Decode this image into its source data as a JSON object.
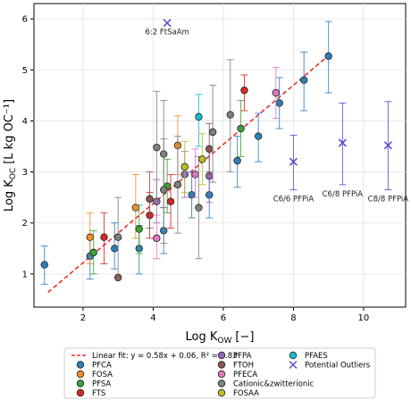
{
  "chart_data": {
    "type": "scatter",
    "xlabel": "Log K",
    "xlabel_sub": "OW",
    "xlabel_unit": "[−]",
    "ylabel": "Log K",
    "ylabel_sub": "OC",
    "ylabel_unit": "[L kg OC⁻¹]",
    "xlim": [
      0.6,
      11.2
    ],
    "ylim": [
      0.35,
      6.3
    ],
    "xticks": [
      2,
      4,
      6,
      8,
      10
    ],
    "yticks": [
      1,
      2,
      3,
      4,
      5,
      6
    ],
    "grid": true,
    "fit": {
      "slope": 0.58,
      "intercept": 0.06,
      "x_range": [
        1.0,
        9.0
      ],
      "label": "Linear fit: y = 0.58x + 0.06, R² = 0.83",
      "color": "#e8302a"
    },
    "series": [
      {
        "name": "PFCA",
        "color": "#2f7fb7",
        "marker": "circle",
        "points": [
          {
            "x": 0.9,
            "y": 1.18,
            "lo": 0.8,
            "hi": 1.55
          },
          {
            "x": 2.2,
            "y": 1.35,
            "lo": 0.9,
            "hi": 1.75
          },
          {
            "x": 2.9,
            "y": 1.5,
            "lo": 1.1,
            "hi": 2.0
          },
          {
            "x": 3.6,
            "y": 1.5,
            "lo": 1.0,
            "hi": 1.95
          },
          {
            "x": 4.3,
            "y": 1.85,
            "lo": 1.4,
            "hi": 2.3
          },
          {
            "x": 5.1,
            "y": 2.55,
            "lo": 2.1,
            "hi": 3.0
          },
          {
            "x": 5.6,
            "y": 2.55,
            "lo": 2.1,
            "hi": 3.0
          },
          {
            "x": 6.4,
            "y": 3.22,
            "lo": 2.7,
            "hi": 3.7
          },
          {
            "x": 7.0,
            "y": 3.7,
            "lo": 3.2,
            "hi": 4.15
          },
          {
            "x": 7.6,
            "y": 4.35,
            "lo": 3.85,
            "hi": 4.85
          },
          {
            "x": 8.3,
            "y": 4.8,
            "lo": 4.2,
            "hi": 5.35
          },
          {
            "x": 9.0,
            "y": 5.27,
            "lo": 4.55,
            "hi": 5.95
          }
        ]
      },
      {
        "name": "FOSA",
        "color": "#f28e2b",
        "marker": "circle",
        "points": [
          {
            "x": 2.2,
            "y": 1.72,
            "lo": 1.2,
            "hi": 2.2
          },
          {
            "x": 3.5,
            "y": 2.3,
            "lo": 1.7,
            "hi": 2.95
          },
          {
            "x": 4.7,
            "y": 3.52,
            "lo": 2.95,
            "hi": 4.1
          }
        ]
      },
      {
        "name": "PFSA",
        "color": "#3aa335",
        "marker": "circle",
        "points": [
          {
            "x": 2.3,
            "y": 1.42,
            "lo": 1.0,
            "hi": 1.85
          },
          {
            "x": 3.6,
            "y": 1.88,
            "lo": 1.4,
            "hi": 2.35
          },
          {
            "x": 4.4,
            "y": 2.72,
            "lo": 2.2,
            "hi": 3.25
          },
          {
            "x": 6.5,
            "y": 3.85,
            "lo": 3.3,
            "hi": 4.4
          }
        ]
      },
      {
        "name": "FTS",
        "color": "#d62728",
        "marker": "circle",
        "points": [
          {
            "x": 2.6,
            "y": 1.72,
            "lo": 1.2,
            "hi": 2.2
          },
          {
            "x": 3.9,
            "y": 2.15,
            "lo": 1.7,
            "hi": 2.6
          },
          {
            "x": 4.5,
            "y": 2.42,
            "lo": 1.9,
            "hi": 2.95
          },
          {
            "x": 6.6,
            "y": 4.6,
            "lo": 4.2,
            "hi": 4.9
          }
        ]
      },
      {
        "name": "PFPA",
        "color": "#9467bd",
        "marker": "circle",
        "points": [
          {
            "x": 4.1,
            "y": 2.42,
            "lo": 2.0,
            "hi": 2.85
          },
          {
            "x": 4.9,
            "y": 2.95,
            "lo": 2.5,
            "hi": 3.4
          },
          {
            "x": 5.6,
            "y": 2.92,
            "lo": 2.4,
            "hi": 3.45
          }
        ]
      },
      {
        "name": "FTOH",
        "color": "#8c564b",
        "marker": "circle",
        "points": [
          {
            "x": 3.0,
            "y": 0.93,
            "lo": 0.93,
            "hi": 0.93
          },
          {
            "x": 3.9,
            "y": 2.47,
            "lo": 1.9,
            "hi": 3.0
          },
          {
            "x": 5.6,
            "y": 3.45,
            "lo": 2.95,
            "hi": 3.95
          }
        ]
      },
      {
        "name": "PFECA",
        "color": "#e377c2",
        "marker": "circle",
        "points": [
          {
            "x": 4.1,
            "y": 1.7,
            "lo": 1.3,
            "hi": 2.15
          },
          {
            "x": 5.2,
            "y": 2.95,
            "lo": 2.5,
            "hi": 3.45
          },
          {
            "x": 7.5,
            "y": 4.55,
            "lo": 4.05,
            "hi": 5.05
          }
        ]
      },
      {
        "name": "Cationic&zwitterionic",
        "color": "#7f7f7f",
        "marker": "circle",
        "points": [
          {
            "x": 3.0,
            "y": 1.72,
            "lo": 0.9,
            "hi": 2.5
          },
          {
            "x": 4.1,
            "y": 3.48,
            "lo": 2.4,
            "hi": 4.58
          },
          {
            "x": 4.3,
            "y": 3.35,
            "lo": 2.3,
            "hi": 4.4
          },
          {
            "x": 4.3,
            "y": 2.65,
            "lo": 1.6,
            "hi": 3.65
          },
          {
            "x": 4.7,
            "y": 2.75,
            "lo": 1.8,
            "hi": 3.7
          },
          {
            "x": 5.3,
            "y": 2.3,
            "lo": 1.3,
            "hi": 3.3
          },
          {
            "x": 5.7,
            "y": 3.78,
            "lo": 2.8,
            "hi": 4.7
          },
          {
            "x": 6.2,
            "y": 4.12,
            "lo": 3.0,
            "hi": 5.2
          }
        ]
      },
      {
        "name": "FOSAA",
        "color": "#bcbd22",
        "marker": "circle",
        "points": [
          {
            "x": 4.9,
            "y": 3.1,
            "lo": 2.6,
            "hi": 3.6
          },
          {
            "x": 5.4,
            "y": 3.25,
            "lo": 2.75,
            "hi": 3.75
          }
        ]
      },
      {
        "name": "PFAES",
        "color": "#17becf",
        "marker": "circle",
        "points": [
          {
            "x": 5.3,
            "y": 4.08,
            "lo": 3.5,
            "hi": 4.52
          }
        ]
      },
      {
        "name": "Potential Outliers",
        "color": "#5a4fcf",
        "marker": "x",
        "points": [
          {
            "x": 4.4,
            "y": 5.92,
            "lo": 5.92,
            "hi": 5.92,
            "label": "6:2 FtSaAm"
          },
          {
            "x": 8.0,
            "y": 3.2,
            "lo": 2.65,
            "hi": 3.72,
            "label": "C6/6 PFPiA"
          },
          {
            "x": 9.4,
            "y": 3.57,
            "lo": 2.75,
            "hi": 4.35,
            "label": "C6/8 PFPiA"
          },
          {
            "x": 10.7,
            "y": 3.52,
            "lo": 2.65,
            "hi": 4.38,
            "label": "C8/8 PFPiA"
          }
        ]
      }
    ],
    "legend": {
      "position": "bottom",
      "columns": 3
    }
  }
}
